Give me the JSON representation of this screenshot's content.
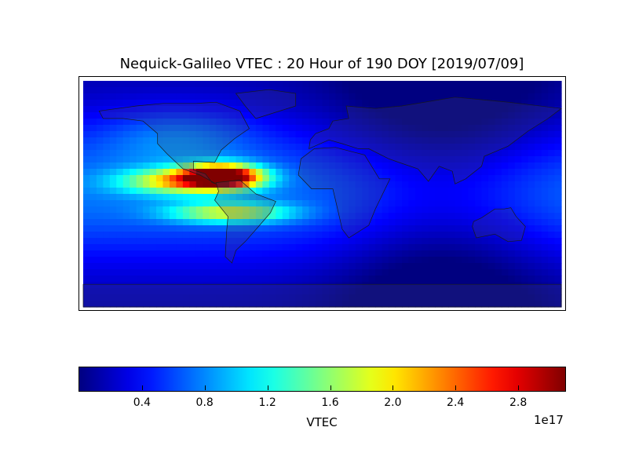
{
  "title": "Nequick-Galileo VTEC : 20 Hour of 190 DOY [2019/07/09]",
  "chart_data": {
    "type": "heatmap",
    "title": "Nequick-Galileo VTEC : 20 Hour of 190 DOY [2019/07/09]",
    "projection": "equirectangular",
    "xlim": [
      -180,
      180
    ],
    "ylim": [
      -90,
      90
    ],
    "colormap": "jet",
    "vmin": 0,
    "vmax": 3.1e+17,
    "peak": {
      "lon": -75,
      "lat": 15,
      "value": 3.1e+17
    },
    "colorbar": {
      "label": "VTEC",
      "exponent_label": "1e17",
      "ticks": [
        0.4,
        0.8,
        1.2,
        1.6,
        2.0,
        2.4,
        2.8
      ],
      "tick_labels": [
        "0.4",
        "0.8",
        "1.2",
        "1.6",
        "2.0",
        "2.4",
        "2.8"
      ],
      "range": [
        0.0,
        3.1
      ]
    }
  }
}
